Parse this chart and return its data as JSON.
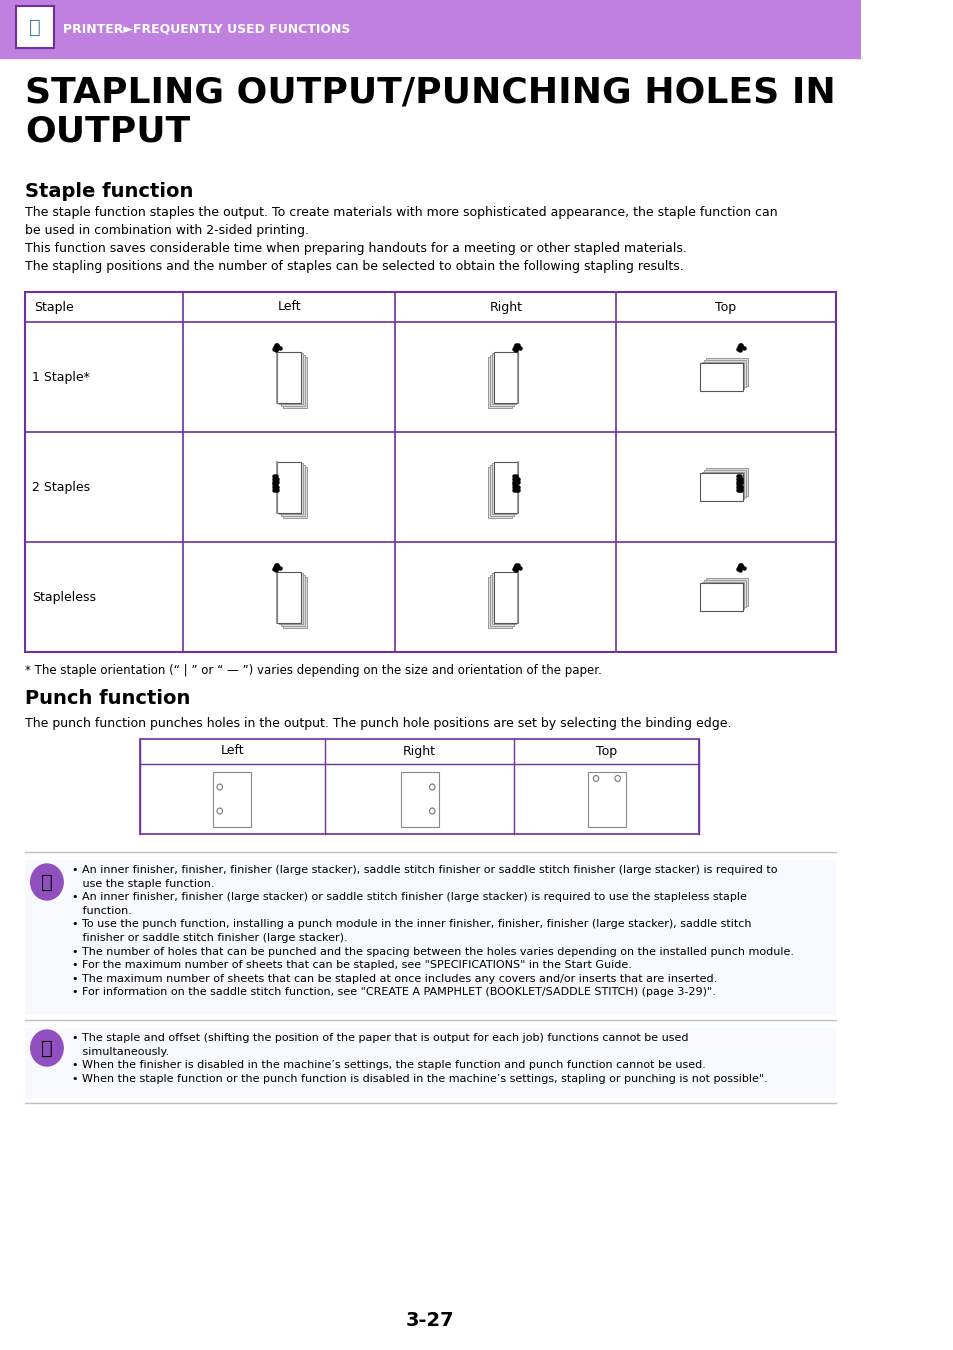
{
  "header_bg_color": "#c080e0",
  "header_text": "PRINTER►FREQUENTLY USED FUNCTIONS",
  "header_text_color": "#ffffff",
  "title": "STAPLING OUTPUT/PUNCHING HOLES IN\nOUTPUT",
  "section1_title": "Staple function",
  "section1_body": "The staple function staples the output. To create materials with more sophisticated appearance, the staple function can\nbe used in combination with 2-sided printing.\nThis function saves considerable time when preparing handouts for a meeting or other stapled materials.\nThe stapling positions and the number of staples can be selected to obtain the following stapling results.",
  "table_header": [
    "Staple",
    "Left",
    "Right",
    "Top"
  ],
  "table_rows": [
    "1 Staple*",
    "2 Staples",
    "Stapleless"
  ],
  "table_border_color": "#7030a0",
  "footnote": "* The staple orientation (“ | ” or “ — ”) varies depending on the size and orientation of the paper.",
  "section2_title": "Punch function",
  "section2_body": "The punch function punches holes in the output. The punch hole positions are set by selecting the binding edge.",
  "punch_header": [
    "Left",
    "Right",
    "Top"
  ],
  "note_icon_color": "#9050c0",
  "note_bg_color": "#f0f0ff",
  "note_border_color": "#c0c0e0",
  "notes1": [
    "• An inner finisher, finisher, finisher (large stacker), saddle stitch finisher or saddle stitch finisher (large stacker) is required to\n   use the staple function.",
    "• An inner finisher, finisher (large stacker) or saddle stitch finisher (large stacker) is required to use the stapleless staple\n   function.",
    "• To use the punch function, installing a punch module in the inner finisher, finisher, finisher (large stacker), saddle stitch\n   finisher or saddle stitch finisher (large stacker).",
    "• The number of holes that can be punched and the spacing between the holes varies depending on the installed punch module.",
    "• For the maximum number of sheets that can be stapled, see \"SPECIFICATIONS\" in the Start Guide.",
    "• The maximum number of sheets that can be stapled at once includes any covers and/or inserts that are inserted.",
    "• For information on the saddle stitch function, see \"CREATE A PAMPHLET (BOOKLET/SADDLE STITCH) (page 3-29)\"."
  ],
  "notes2": [
    "• The staple and offset (shifting the position of the paper that is output for each job) functions cannot be used\n   simultaneously.",
    "• When the finisher is disabled in the machine’s settings, the staple function and punch function cannot be used.",
    "• When the staple function or the punch function is disabled in the machine’s settings, stapling or punching is not possible\"."
  ],
  "page_number": "3-27",
  "bg_color": "#ffffff"
}
